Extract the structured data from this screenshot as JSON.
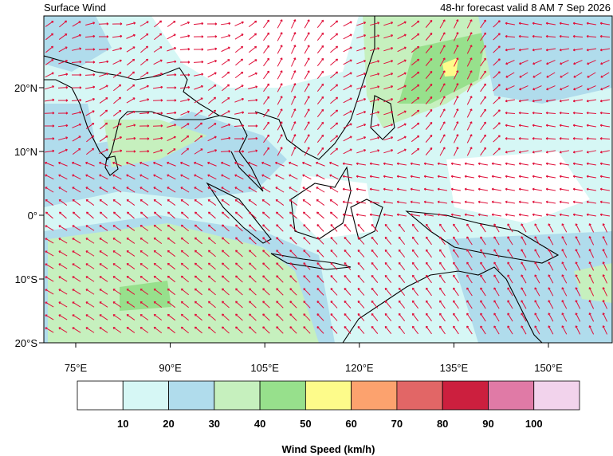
{
  "header": {
    "title": "Surface Wind",
    "subtitle": "48-hr forecast valid 8 AM 7 Sep 2026"
  },
  "map": {
    "lon_ticks": [
      {
        "value": 75,
        "label": "75°E"
      },
      {
        "value": 90,
        "label": "90°E"
      },
      {
        "value": 105,
        "label": "105°E"
      },
      {
        "value": 120,
        "label": "120°E"
      },
      {
        "value": 135,
        "label": "135°E"
      },
      {
        "value": 150,
        "label": "150°E"
      }
    ],
    "lat_ticks": [
      {
        "value": 20,
        "label": "20°N"
      },
      {
        "value": 10,
        "label": "10°N"
      },
      {
        "value": 0,
        "label": "0°"
      },
      {
        "value": -10,
        "label": "10°S"
      },
      {
        "value": -20,
        "label": "20°S"
      }
    ]
  },
  "colorbar": {
    "title": "Wind Speed (km/h)",
    "colors": [
      "#ffffff",
      "#d6f7f5",
      "#b0dcec",
      "#c6f0be",
      "#97e08c",
      "#fdfb8a",
      "#fca26e",
      "#e26666",
      "#cc1f3e",
      "#e07aa6",
      "#f2d3ec"
    ],
    "labels": [
      10,
      20,
      30,
      40,
      50,
      60,
      70,
      80,
      90,
      100
    ]
  }
}
